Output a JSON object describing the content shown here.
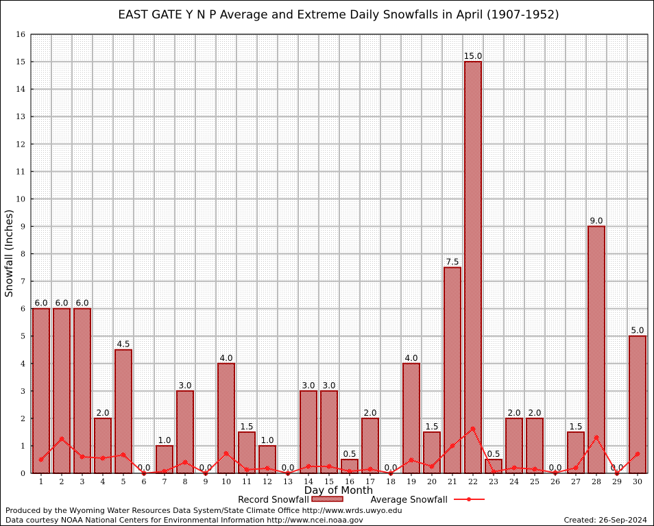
{
  "chart_data": {
    "type": "bar",
    "title": "EAST GATE Y N P Average and Extreme Daily Snowfalls in April (1907-1952)",
    "xlabel": "Day of Month",
    "ylabel": "Snowfall (Inches)",
    "ylim": [
      0,
      16
    ],
    "yticks": [
      "0",
      "1",
      "2",
      "3",
      "4",
      "5",
      "6",
      "7",
      "8",
      "9",
      "10",
      "11",
      "12",
      "13",
      "14",
      "15",
      "16"
    ],
    "categories": [
      "1",
      "2",
      "3",
      "4",
      "5",
      "6",
      "7",
      "8",
      "9",
      "10",
      "11",
      "12",
      "13",
      "14",
      "15",
      "16",
      "17",
      "18",
      "19",
      "20",
      "21",
      "22",
      "23",
      "24",
      "25",
      "26",
      "27",
      "28",
      "29",
      "30"
    ],
    "grid": true,
    "legend_position": "bottom-center",
    "series": [
      {
        "name": "Record Snowfall",
        "type": "bar",
        "color": "#b00000",
        "values": [
          6.0,
          6.0,
          6.0,
          2.0,
          4.5,
          0.0,
          1.0,
          3.0,
          0.0,
          4.0,
          1.5,
          1.0,
          0.0,
          3.0,
          3.0,
          0.5,
          2.0,
          0.0,
          4.0,
          1.5,
          7.5,
          15.0,
          0.5,
          2.0,
          2.0,
          0.0,
          1.5,
          9.0,
          0.0,
          5.0
        ],
        "labels": [
          "6.0",
          "6.0",
          "6.0",
          "2.0",
          "4.5",
          "0.0",
          "1.0",
          "3.0",
          "0.0",
          "4.0",
          "1.5",
          "1.0",
          "0.0",
          "3.0",
          "3.0",
          "0.5",
          "2.0",
          "0.0",
          "4.0",
          "1.5",
          "7.5",
          "15.0",
          "0.5",
          "2.0",
          "2.0",
          "0.0",
          "1.5",
          "9.0",
          "0.0",
          "5.0"
        ]
      },
      {
        "name": "Average Snowfall",
        "type": "line",
        "color": "#ff2020",
        "values": [
          0.5,
          1.25,
          0.6,
          0.55,
          0.67,
          0.0,
          0.07,
          0.4,
          0.0,
          0.72,
          0.13,
          0.18,
          0.0,
          0.25,
          0.25,
          0.07,
          0.15,
          0.0,
          0.48,
          0.25,
          1.0,
          1.62,
          0.05,
          0.2,
          0.15,
          0.02,
          0.2,
          1.3,
          0.0,
          0.7
        ]
      }
    ]
  },
  "footer": {
    "produced_by": "Produced by the Wyoming Water Resources Data System/State Climate Office http://www.wrds.uwyo.edu",
    "courtesy": "Data courtesy NOAA National Centers for Environmental Information http://www.ncei.noaa.gov",
    "created": "Created: 26-Sep-2024"
  }
}
